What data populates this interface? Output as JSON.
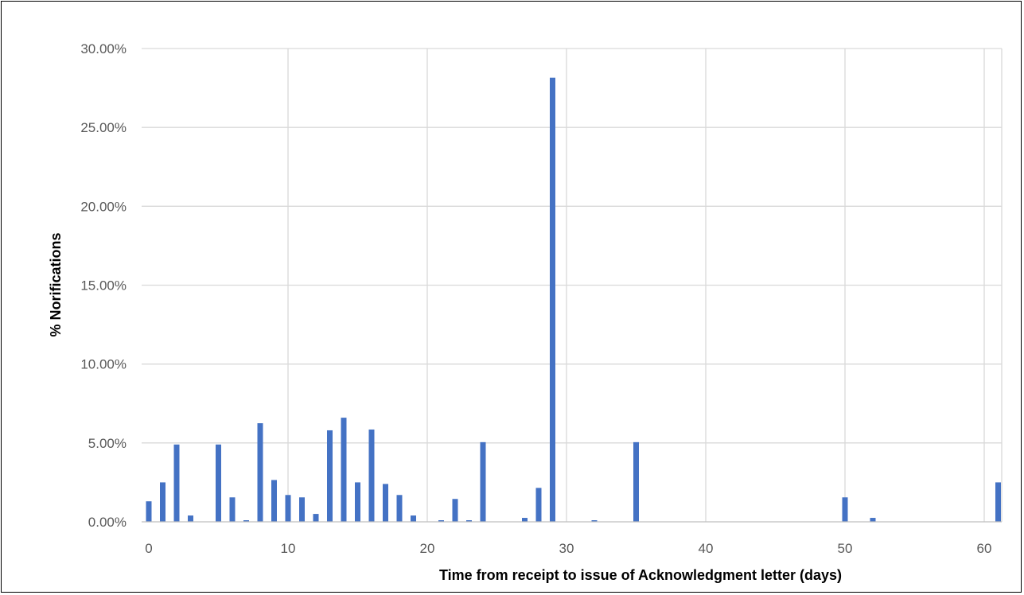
{
  "chart_data": {
    "type": "bar",
    "title": "",
    "xlabel": "Time  from receipt to issue of Acknowledgment letter (days)",
    "ylabel": "% Norifications",
    "xlim": [
      0,
      61
    ],
    "ylim": [
      0,
      0.3
    ],
    "x_ticks": [
      0,
      10,
      20,
      30,
      40,
      50,
      60
    ],
    "x_tick_labels": [
      "0",
      "10",
      "20",
      "30",
      "40",
      "50",
      "60"
    ],
    "y_ticks": [
      0,
      0.05,
      0.1,
      0.15,
      0.2,
      0.25,
      0.3
    ],
    "y_tick_labels": [
      "0.00%",
      "5.00%",
      "10.00%",
      "15.00%",
      "20.00%",
      "25.00%",
      "30.00%"
    ],
    "grid": true,
    "legend": "none",
    "color": "#4472C4",
    "points": [
      {
        "x": 0,
        "y": 0.013
      },
      {
        "x": 1,
        "y": 0.025
      },
      {
        "x": 2,
        "y": 0.049
      },
      {
        "x": 3,
        "y": 0.004
      },
      {
        "x": 5,
        "y": 0.049
      },
      {
        "x": 6,
        "y": 0.0155
      },
      {
        "x": 7,
        "y": 0.001
      },
      {
        "x": 8,
        "y": 0.0625
      },
      {
        "x": 9,
        "y": 0.0265
      },
      {
        "x": 10,
        "y": 0.017
      },
      {
        "x": 11,
        "y": 0.0155
      },
      {
        "x": 12,
        "y": 0.005
      },
      {
        "x": 13,
        "y": 0.058
      },
      {
        "x": 14,
        "y": 0.066
      },
      {
        "x": 15,
        "y": 0.025
      },
      {
        "x": 16,
        "y": 0.0585
      },
      {
        "x": 17,
        "y": 0.024
      },
      {
        "x": 18,
        "y": 0.017
      },
      {
        "x": 19,
        "y": 0.004
      },
      {
        "x": 21,
        "y": 0.001
      },
      {
        "x": 22,
        "y": 0.0145
      },
      {
        "x": 23,
        "y": 0.001
      },
      {
        "x": 24,
        "y": 0.0505
      },
      {
        "x": 27,
        "y": 0.0025
      },
      {
        "x": 28,
        "y": 0.0215
      },
      {
        "x": 29,
        "y": 0.2815
      },
      {
        "x": 32,
        "y": 0.001
      },
      {
        "x": 35,
        "y": 0.0505
      },
      {
        "x": 50,
        "y": 0.0155
      },
      {
        "x": 52,
        "y": 0.0025
      },
      {
        "x": 61,
        "y": 0.025
      }
    ]
  }
}
